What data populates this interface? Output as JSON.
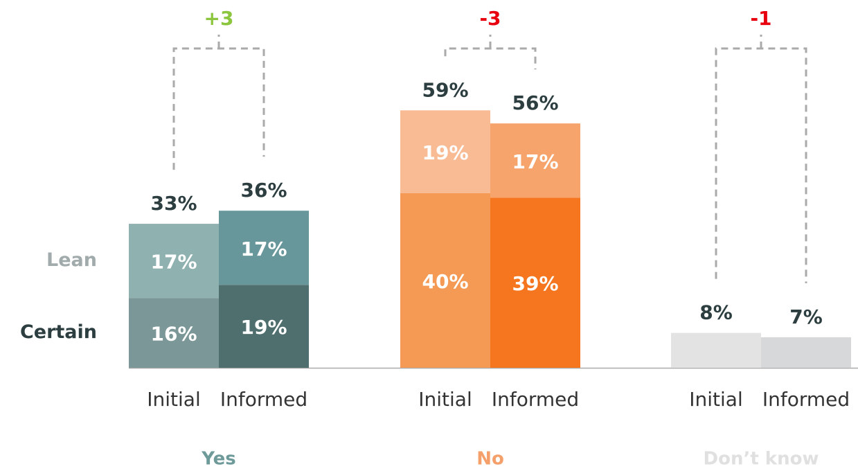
{
  "chart_data": {
    "type": "grouped-stacked-bar",
    "legend": [
      {
        "name": "Lean",
        "color": "#a2abab"
      },
      {
        "name": "Certain",
        "color": "#2d3e40"
      }
    ],
    "groups": [
      {
        "name": "Yes",
        "color": "#6e9a9a",
        "change": 3,
        "change_label": "+3",
        "change_color": "#8cc63f",
        "bars": [
          {
            "label": "Initial",
            "total": 33,
            "total_label": "33%",
            "values": [
              16,
              17
            ],
            "value_labels": [
              "16%",
              "17%"
            ],
            "colors": [
              "#7b9797",
              "#8fb1b0"
            ]
          },
          {
            "label": "Informed",
            "total": 36,
            "total_label": "36%",
            "values": [
              19,
              17
            ],
            "value_labels": [
              "19%",
              "17%"
            ],
            "colors": [
              "#4f6e6e",
              "#67979a"
            ]
          }
        ]
      },
      {
        "name": "No",
        "color": "#f5a06a",
        "change": -3,
        "change_color": "#e8000f",
        "bars": [
          {
            "label": "Initial",
            "total": 59,
            "total_label": "59%",
            "values": [
              40,
              19
            ],
            "value_labels": [
              "40%",
              "19%"
            ],
            "colors": [
              "#f59a54",
              "#f9bb94"
            ]
          },
          {
            "label": "Informed",
            "total": 56,
            "total_label": "56%",
            "values": [
              39,
              17
            ],
            "value_labels": [
              "39%",
              "17%"
            ],
            "colors": [
              "#f5761f",
              "#f6a46c"
            ]
          }
        ]
      },
      {
        "name": "Don’t know",
        "color": "#e0e0e0",
        "change": -1,
        "change_color": "#e8000f",
        "bars": [
          {
            "label": "Initial",
            "total": 8,
            "total_label": "8%",
            "values": [
              8
            ],
            "colors": [
              "#e3e3e3"
            ]
          },
          {
            "label": "Informed",
            "total": 7,
            "total_label": "7%",
            "values": [
              7
            ],
            "colors": [
              "#d7d8d9"
            ]
          }
        ]
      }
    ]
  }
}
